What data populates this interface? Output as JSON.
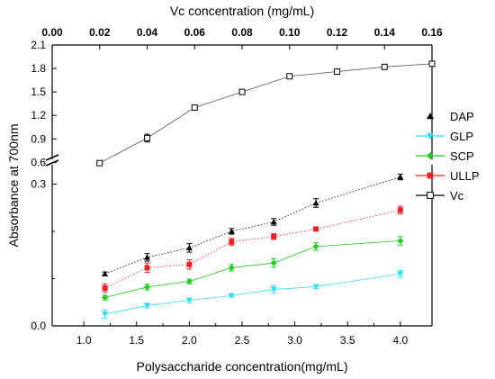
{
  "chart_data": {
    "type": "line",
    "title": "",
    "xlabel_bottom": "Polysaccharide concentration(mg/mL)",
    "xlabel_top": "Vc concentration (mg/mL)",
    "ylabel": "Absorbance at 700nm",
    "x_bottom": {
      "lim": [
        0.7,
        4.3
      ],
      "ticks": [
        1.0,
        1.5,
        2.0,
        2.5,
        3.0,
        3.5,
        4.0
      ],
      "tick_labels": [
        "1.0",
        "1.5",
        "2.0",
        "2.5",
        "3.0",
        "3.5",
        "4.0"
      ]
    },
    "x_top": {
      "lim": [
        0.0,
        0.16
      ],
      "ticks": [
        0.0,
        0.02,
        0.04,
        0.06,
        0.08,
        0.1,
        0.12,
        0.14,
        0.16
      ],
      "tick_labels": [
        "0.00",
        "0.02",
        "0.04",
        "0.06",
        "0.08",
        "0.10",
        "0.12",
        "0.14",
        "0.16"
      ]
    },
    "y_lower": {
      "lim": [
        0.0,
        0.32
      ],
      "ticks": [
        0.0,
        0.3
      ],
      "tick_labels": [
        "0.0",
        "0.3"
      ]
    },
    "y_upper": {
      "lim": [
        0.5,
        2.1
      ],
      "ticks": [
        0.6,
        0.9,
        1.2,
        1.5,
        1.8,
        2.1
      ],
      "tick_labels": [
        "0.6",
        "0.9",
        "1.2",
        "1.5",
        "1.8",
        "2.1"
      ]
    },
    "axis_break": true,
    "grid": false,
    "legend_position": "right",
    "series": [
      {
        "name": "DAP",
        "marker": "triangle-up",
        "color": "#000000",
        "axis": "bottom-lower",
        "dash": "dot",
        "x": [
          1.2,
          1.6,
          2.0,
          2.4,
          2.8,
          3.2,
          4.0
        ],
        "y": [
          0.11,
          0.145,
          0.165,
          0.2,
          0.22,
          0.26,
          0.315
        ],
        "err": [
          0.004,
          0.008,
          0.009,
          0.006,
          0.007,
          0.009,
          0.006
        ]
      },
      {
        "name": "GLP",
        "marker": "triangle-down",
        "color": "#33ddee",
        "axis": "bottom-lower",
        "dash": "solid",
        "x": [
          1.2,
          1.6,
          2.0,
          2.4,
          2.8,
          3.2,
          4.0
        ],
        "y": [
          0.025,
          0.043,
          0.054,
          0.064,
          0.077,
          0.083,
          0.11
        ],
        "err": [
          0.009,
          0.005,
          0.005,
          0.003,
          0.008,
          0.004,
          0.007
        ]
      },
      {
        "name": "SCP",
        "marker": "diamond",
        "color": "#22cc22",
        "axis": "bottom-lower",
        "dash": "solid",
        "x": [
          1.2,
          1.6,
          2.0,
          2.4,
          2.8,
          3.2,
          4.0
        ],
        "y": [
          0.06,
          0.082,
          0.094,
          0.123,
          0.133,
          0.168,
          0.18
        ],
        "err": [
          0.005,
          0.006,
          0.005,
          0.007,
          0.009,
          0.008,
          0.009
        ]
      },
      {
        "name": "ULLP",
        "marker": "square-filled",
        "color": "#ee2222",
        "axis": "bottom-lower",
        "dash": "dot",
        "x": [
          1.2,
          1.6,
          2.0,
          2.4,
          2.8,
          3.2,
          4.0
        ],
        "y": [
          0.08,
          0.123,
          0.13,
          0.178,
          0.189,
          0.205,
          0.245
        ],
        "err": [
          0.009,
          0.01,
          0.01,
          0.007,
          0.006,
          0.004,
          0.008
        ]
      },
      {
        "name": "Vc",
        "marker": "square-open",
        "color": "#000000",
        "axis": "top-upper",
        "dash": "solid",
        "x": [
          0.02,
          0.04,
          0.06,
          0.08,
          0.1,
          0.12,
          0.14,
          0.16
        ],
        "y": [
          0.59,
          0.91,
          1.3,
          1.5,
          1.7,
          1.76,
          1.82,
          1.86
        ],
        "err": [
          0.02,
          0.05,
          0.02,
          0.02,
          0.03,
          0.02,
          0.02,
          0.03
        ]
      }
    ]
  }
}
